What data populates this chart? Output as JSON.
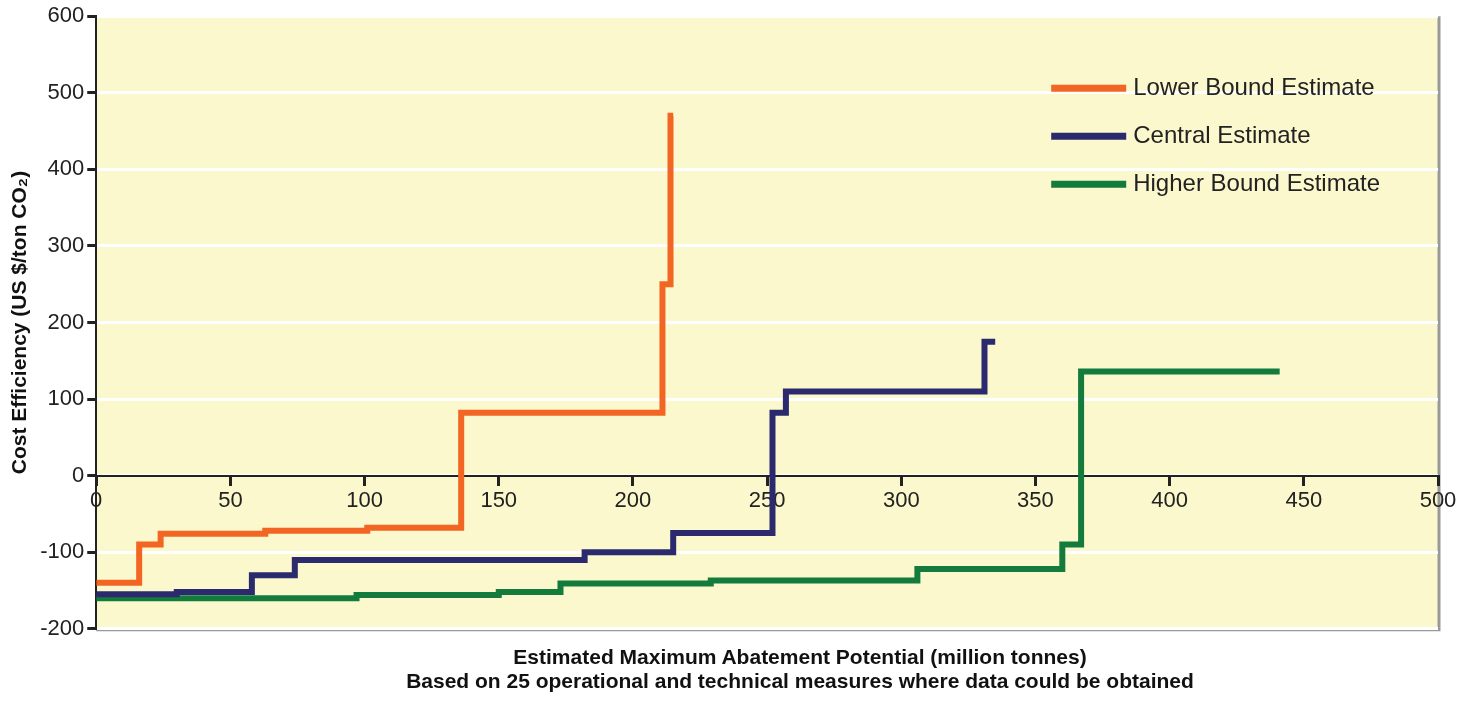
{
  "chart_data": {
    "type": "step",
    "xlabel": "Estimated Maximum Abatement Potential (million tonnes)",
    "ylabel": "Cost Efficiency (US $/ton CO₂)",
    "annotations": [
      "Based on 25 operational and technical measures where data could be obtained"
    ],
    "xlim": [
      0,
      500
    ],
    "xticks": [
      0,
      50,
      100,
      150,
      200,
      250,
      300,
      350,
      400,
      450,
      500
    ],
    "ylim": [
      -200,
      600
    ],
    "yticks": [
      -200,
      -100,
      0,
      100,
      200,
      300,
      400,
      500,
      600
    ],
    "grid": "y",
    "legend": "top right",
    "marker": "none",
    "line_style": "solid",
    "series": [
      {
        "name": "Lower Bound Estimate",
        "color": "#f26522",
        "x": [
          0,
          16,
          24,
          63,
          101,
          136,
          211,
          214,
          215
        ],
        "values": [
          -140,
          -90,
          -76,
          -72,
          -68,
          82,
          250,
          470,
          470
        ]
      },
      {
        "name": "Central Estimate",
        "color": "#2b2a6e",
        "x": [
          0,
          30,
          58,
          74,
          182,
          215,
          252,
          257,
          331,
          335
        ],
        "values": [
          -155,
          -152,
          -130,
          -110,
          -100,
          -75,
          82,
          110,
          175,
          175
        ]
      },
      {
        "name": "Higher Bound Estimate",
        "color": "#137b3b",
        "x": [
          0,
          97,
          150,
          173,
          229,
          306,
          360,
          367,
          441
        ],
        "values": [
          -160,
          -156,
          -152,
          -141,
          -137,
          -122,
          -90,
          136,
          136
        ]
      }
    ]
  }
}
